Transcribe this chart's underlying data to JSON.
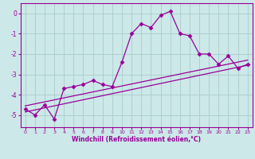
{
  "title": "",
  "xlabel": "Windchill (Refroidissement éolien,°C)",
  "ylabel": "",
  "bg_color": "#cce8e8",
  "grid_color": "#aacccc",
  "line_color": "#990099",
  "x_data": [
    0,
    1,
    2,
    3,
    4,
    5,
    6,
    7,
    8,
    9,
    10,
    11,
    12,
    13,
    14,
    15,
    16,
    17,
    18,
    19,
    20,
    21,
    22,
    23
  ],
  "y_data": [
    -4.7,
    -5.0,
    -4.5,
    -5.2,
    -3.7,
    -3.6,
    -3.5,
    -3.3,
    -3.5,
    -3.6,
    -2.4,
    -1.0,
    -0.5,
    -0.7,
    -0.1,
    0.1,
    -1.0,
    -1.1,
    -2.0,
    -2.0,
    -2.5,
    -2.1,
    -2.7,
    -2.5
  ],
  "trend1_x": [
    0,
    23
  ],
  "trend1_y": [
    -4.55,
    -2.3
  ],
  "trend2_x": [
    0,
    23
  ],
  "trend2_y": [
    -4.85,
    -2.55
  ],
  "xlim": [
    -0.5,
    23.5
  ],
  "ylim": [
    -5.6,
    0.5
  ],
  "yticks": [
    0,
    -1,
    -2,
    -3,
    -4,
    -5
  ],
  "xticks": [
    0,
    1,
    2,
    3,
    4,
    5,
    6,
    7,
    8,
    9,
    10,
    11,
    12,
    13,
    14,
    15,
    16,
    17,
    18,
    19,
    20,
    21,
    22,
    23
  ],
  "marker": "D",
  "markersize": 2.5,
  "linewidth": 0.9,
  "trend_linewidth": 0.9
}
